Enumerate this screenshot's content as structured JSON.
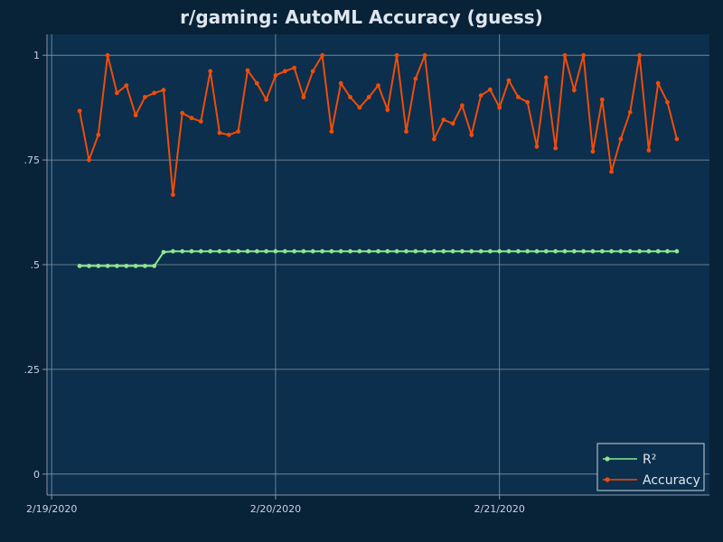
{
  "chart_data": {
    "type": "line",
    "title": "r/gaming: AutoML Accuracy (guess)",
    "xlabel": "",
    "ylabel": "",
    "x_ticks": [
      "2/19/2020",
      "2/20/2020",
      "2/21/2020"
    ],
    "x_range_hours": [
      -0.5,
      70.5
    ],
    "x_step_hours": 1,
    "y_ticks": [
      "0",
      ".25",
      ".5",
      ".75",
      "1"
    ],
    "y_tick_values": [
      0,
      0.25,
      0.5,
      0.75,
      1
    ],
    "ylim": [
      -0.05,
      1.05
    ],
    "grid": true,
    "legend_position": "bottom-right",
    "colors": {
      "background": "#082238",
      "plot_background": "#0b2f4c",
      "grid": "#8a96a3",
      "r2": "#8ee88e",
      "accuracy": "#f04c0a"
    },
    "series": [
      {
        "name": "R²",
        "color": "#8ee88e",
        "start_hour": 3,
        "values": [
          0.497,
          0.497,
          0.497,
          0.497,
          0.497,
          0.497,
          0.497,
          0.497,
          0.497,
          0.53,
          0.532,
          0.532,
          0.532,
          0.532,
          0.532,
          0.532,
          0.532,
          0.532,
          0.532,
          0.532,
          0.532,
          0.532,
          0.532,
          0.532,
          0.532,
          0.532,
          0.532,
          0.532,
          0.532,
          0.532,
          0.532,
          0.532,
          0.532,
          0.532,
          0.532,
          0.532,
          0.532,
          0.532,
          0.532,
          0.532,
          0.532,
          0.532,
          0.532,
          0.532,
          0.532,
          0.532,
          0.532,
          0.532,
          0.532,
          0.532,
          0.532,
          0.532,
          0.532,
          0.532,
          0.532,
          0.532,
          0.532,
          0.532,
          0.532,
          0.532,
          0.532,
          0.532,
          0.532,
          0.532,
          0.532
        ]
      },
      {
        "name": "Accuracy",
        "color": "#f04c0a",
        "start_hour": 3,
        "values": [
          0.867,
          0.75,
          0.81,
          1.0,
          0.91,
          0.928,
          0.857,
          0.9,
          0.91,
          0.917,
          0.667,
          0.862,
          0.85,
          0.842,
          0.962,
          0.815,
          0.81,
          0.818,
          0.964,
          0.933,
          0.894,
          0.952,
          0.962,
          0.97,
          0.9,
          0.962,
          1.0,
          0.818,
          0.933,
          0.9,
          0.875,
          0.9,
          0.928,
          0.87,
          1.0,
          0.818,
          0.944,
          1.0,
          0.8,
          0.846,
          0.837,
          0.88,
          0.81,
          0.904,
          0.918,
          0.875,
          0.94,
          0.9,
          0.888,
          0.782,
          0.947,
          0.778,
          1.0,
          0.917,
          1.0,
          0.77,
          0.894,
          0.722,
          0.8,
          0.864,
          1.0,
          0.773,
          0.933,
          0.888,
          0.8
        ]
      }
    ]
  }
}
